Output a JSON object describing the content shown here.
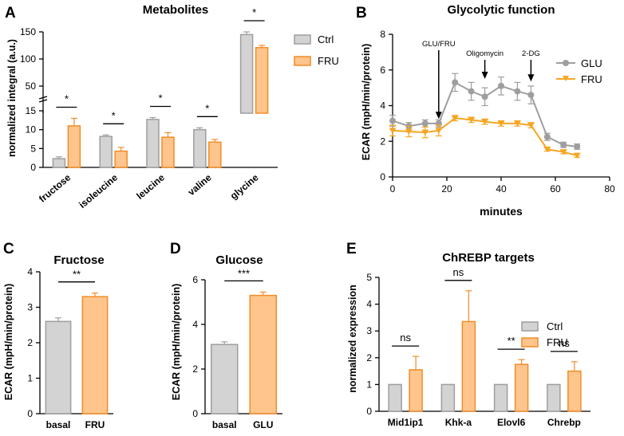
{
  "panels": {
    "A": {
      "label": "A"
    },
    "B": {
      "label": "B"
    },
    "C": {
      "label": "C"
    },
    "D": {
      "label": "D"
    },
    "E": {
      "label": "E"
    }
  },
  "colors": {
    "ctrl_fill": "#d3d3d3",
    "ctrl_edge": "#9e9e9e",
    "fru_fill": "#ffc58c",
    "fru_edge": "#f28c28",
    "glu_line": "#9e9e9e",
    "fru_line": "#f5a623"
  },
  "chart_data": [
    {
      "id": "A",
      "type": "bar",
      "title": "Metabolites",
      "ylabel": "normalized integral (a.u.)",
      "axis_break": true,
      "lower_range": [
        0,
        15
      ],
      "lower_ticks": [
        "0",
        "5",
        "10",
        "15"
      ],
      "upper_range": [
        0,
        150
      ],
      "upper_ticks": [
        "50",
        "100",
        "150"
      ],
      "categories": [
        "fructose",
        "isoleucine",
        "leucine",
        "valine",
        "glycine"
      ],
      "series": [
        {
          "name": "Ctrl",
          "values": [
            2.3,
            8.2,
            12.7,
            10.0,
            145
          ],
          "errors": [
            0.5,
            0.4,
            0.5,
            0.5,
            5
          ]
        },
        {
          "name": "FRU",
          "values": [
            11.0,
            4.3,
            8.0,
            6.7,
            121
          ],
          "errors": [
            2.0,
            1.0,
            1.2,
            0.7,
            4
          ]
        }
      ],
      "significance": [
        "*",
        "*",
        "*",
        "*",
        "*"
      ],
      "legend": [
        "Ctrl",
        "FRU"
      ]
    },
    {
      "id": "B",
      "type": "line",
      "title": "Glycolytic function",
      "xlabel": "minutes",
      "ylabel": "ECAR (mpH/min/protein)",
      "xlim": [
        0,
        80
      ],
      "ylim": [
        0,
        8
      ],
      "xticks": [
        "0",
        "20",
        "40",
        "60",
        "80"
      ],
      "yticks": [
        "0",
        "2",
        "4",
        "6",
        "8"
      ],
      "series": [
        {
          "name": "GLU",
          "x": [
            0,
            6,
            12,
            17,
            23,
            29,
            34,
            40,
            46,
            51,
            57,
            63,
            68
          ],
          "y": [
            3.15,
            2.85,
            3.0,
            3.0,
            5.3,
            4.8,
            4.5,
            5.1,
            4.8,
            4.6,
            2.25,
            1.8,
            1.7
          ],
          "errors": [
            0.3,
            0.2,
            0.2,
            0.2,
            0.5,
            0.5,
            0.5,
            0.5,
            0.5,
            0.5,
            0.2,
            0.15,
            0.15
          ]
        },
        {
          "name": "FRU",
          "x": [
            0,
            6,
            12,
            17,
            23,
            29,
            34,
            40,
            46,
            51,
            57,
            63,
            68
          ],
          "y": [
            2.6,
            2.55,
            2.5,
            2.6,
            3.3,
            3.2,
            3.1,
            3.0,
            3.0,
            2.9,
            1.55,
            1.4,
            1.2
          ],
          "errors": [
            0.3,
            0.3,
            0.3,
            0.3,
            0.15,
            0.15,
            0.15,
            0.15,
            0.15,
            0.15,
            0.1,
            0.1,
            0.1
          ]
        }
      ],
      "annotations": [
        {
          "text": "GLU/FRU",
          "x": 17,
          "y": 2.5
        },
        {
          "text": "Oligomycin",
          "x": 34,
          "y": 5.5
        },
        {
          "text": "2-DG",
          "x": 51,
          "y": 5.5
        }
      ],
      "legend": [
        "GLU",
        "FRU"
      ]
    },
    {
      "id": "C",
      "type": "bar",
      "title": "Fructose",
      "ylabel": "ECAR (mpH/min/protein)",
      "ylim": [
        0,
        4
      ],
      "yticks": [
        "0",
        "1",
        "2",
        "3",
        "4"
      ],
      "categories": [
        "basal",
        "FRU"
      ],
      "values": [
        2.6,
        3.3
      ],
      "errors": [
        0.1,
        0.1
      ],
      "significance": "**"
    },
    {
      "id": "D",
      "type": "bar",
      "title": "Glucose",
      "ylabel": "ECAR (mpH/min/protein)",
      "ylim": [
        0,
        6
      ],
      "yticks": [
        "0",
        "2",
        "4",
        "6"
      ],
      "categories": [
        "basal",
        "GLU"
      ],
      "values": [
        3.1,
        5.3
      ],
      "errors": [
        0.12,
        0.15
      ],
      "significance": "***"
    },
    {
      "id": "E",
      "type": "bar",
      "title": "ChREBP targets",
      "ylabel": "normalized expression",
      "ylim": [
        0,
        5
      ],
      "yticks": [
        "0",
        "1",
        "2",
        "3",
        "4",
        "5"
      ],
      "categories": [
        "Mid1ip1",
        "Khk-a",
        "Elovl6",
        "Chrebp"
      ],
      "series": [
        {
          "name": "Ctrl",
          "values": [
            1,
            1,
            1,
            1
          ],
          "errors": [
            0,
            0,
            0,
            0
          ]
        },
        {
          "name": "FRU",
          "values": [
            1.55,
            3.35,
            1.75,
            1.5
          ],
          "errors": [
            0.5,
            1.15,
            0.18,
            0.35
          ]
        }
      ],
      "significance": [
        "ns",
        "ns",
        "**",
        "ns"
      ],
      "legend": [
        "Ctrl",
        "FRU"
      ]
    }
  ]
}
